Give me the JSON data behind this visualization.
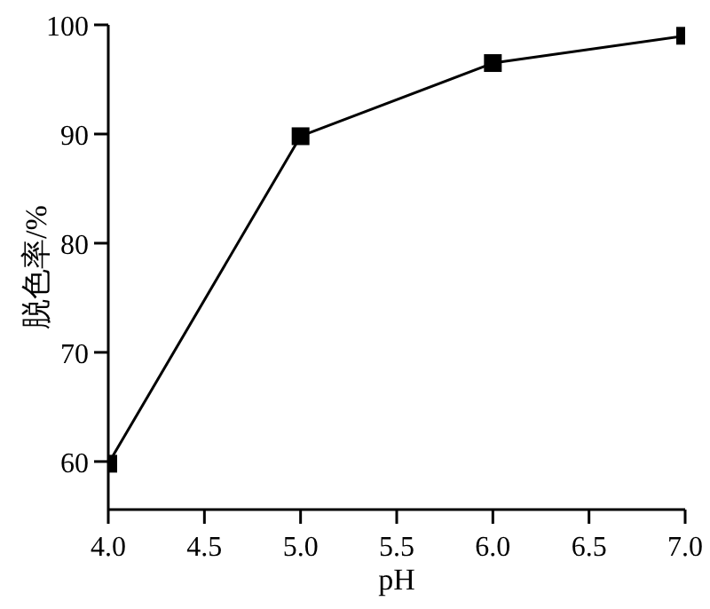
{
  "chart_data": {
    "type": "line",
    "xlabel": "pH",
    "ylabel": "脱色率/%",
    "x": [
      4.0,
      5.0,
      6.0,
      7.0
    ],
    "series": [
      {
        "color": "#000000",
        "values": [
          59.8,
          89.8,
          96.5,
          99.0
        ]
      }
    ],
    "xlim": [
      4,
      7
    ],
    "xticks": [
      {
        "value": 4,
        "label": "4.0"
      },
      {
        "value": 4.5,
        "label": "4.5"
      },
      {
        "value": 5,
        "label": "5.0"
      },
      {
        "value": 5.5,
        "label": "5.5"
      },
      {
        "value": 6,
        "label": "6.0"
      },
      {
        "value": 6.5,
        "label": "6.5"
      },
      {
        "value": 7,
        "label": "7.0"
      }
    ],
    "ylim": [
      55.6,
      100
    ],
    "yticks": [
      60,
      70,
      80,
      90,
      100
    ],
    "grid": false,
    "legend": false,
    "marker": "square",
    "line_style": "solid"
  }
}
